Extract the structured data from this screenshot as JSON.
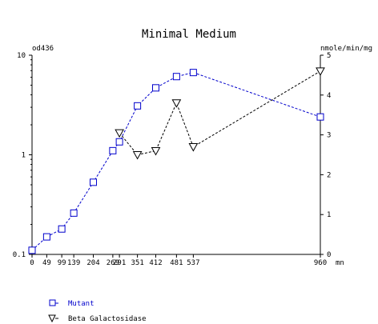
{
  "chart_data": {
    "type": "line",
    "title": "Minimal Medium",
    "left_axis": {
      "label": "od436",
      "scale": "log",
      "range": [
        0.1,
        10
      ],
      "ticks": [
        {
          "value": 0.1,
          "label": "0.1"
        },
        {
          "value": 1,
          "label": "1"
        },
        {
          "value": 10,
          "label": "10"
        }
      ]
    },
    "right_axis": {
      "label": "nmole/min/mg",
      "scale": "linear",
      "range": [
        0,
        5
      ],
      "ticks": [
        {
          "value": 0,
          "label": "0"
        },
        {
          "value": 1,
          "label": "1"
        },
        {
          "value": 2,
          "label": "2"
        },
        {
          "value": 3,
          "label": "3"
        },
        {
          "value": 4,
          "label": "4"
        },
        {
          "value": 5,
          "label": "5"
        }
      ]
    },
    "x_axis": {
      "unit_label": "mn",
      "range": [
        0,
        960
      ],
      "ticks": [
        {
          "value": 0,
          "label": "0"
        },
        {
          "value": 49,
          "label": "49"
        },
        {
          "value": 99,
          "label": "99"
        },
        {
          "value": 139,
          "label": "139"
        },
        {
          "value": 204,
          "label": "204"
        },
        {
          "value": 269,
          "label": "269"
        },
        {
          "value": 291,
          "label": "291"
        },
        {
          "value": 351,
          "label": "351"
        },
        {
          "value": 412,
          "label": "412"
        },
        {
          "value": 481,
          "label": "481"
        },
        {
          "value": 537,
          "label": "537"
        },
        {
          "value": 960,
          "label": "960"
        }
      ]
    },
    "series": [
      {
        "name": "Mutant",
        "axis": "left",
        "color": "#0000cc",
        "marker": "square",
        "x": [
          0,
          49,
          99,
          139,
          204,
          269,
          291,
          351,
          412,
          481,
          537,
          960
        ],
        "y": [
          0.11,
          0.15,
          0.18,
          0.26,
          0.53,
          1.1,
          1.35,
          3.1,
          4.7,
          6.1,
          6.7,
          2.4
        ]
      },
      {
        "name": "Beta Galactosidase",
        "axis": "right",
        "color": "#000000",
        "marker": "triangle-down",
        "x": [
          291,
          351,
          412,
          481,
          537,
          960
        ],
        "y": [
          3.05,
          2.5,
          2.6,
          3.8,
          2.7,
          4.6
        ]
      }
    ],
    "legend_position": "bottom-left",
    "grid": false
  }
}
